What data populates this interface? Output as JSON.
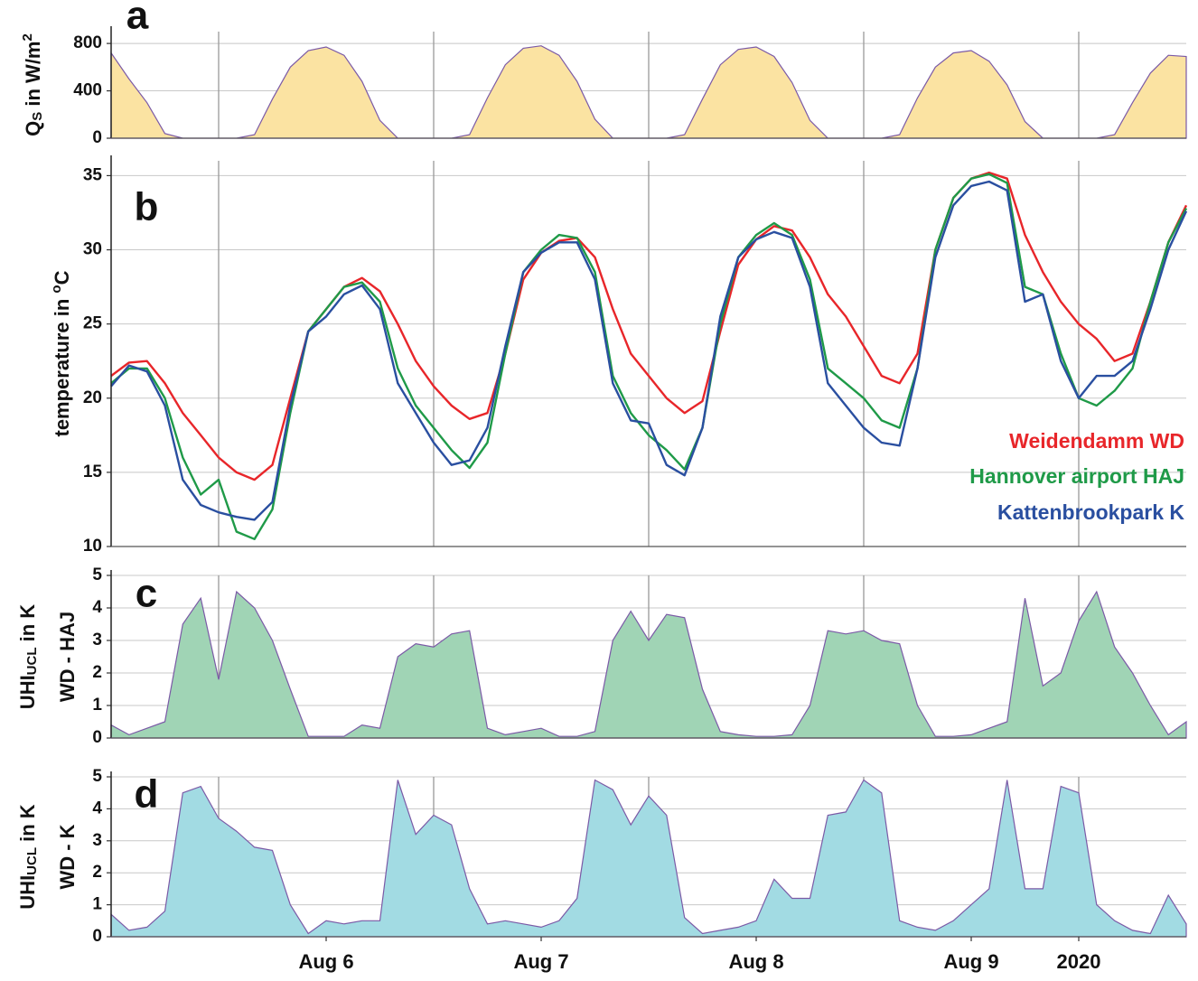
{
  "chart_data": [
    {
      "type": "area",
      "panel_label": "a",
      "ylabel": [
        [
          {
            "text": "Q"
          },
          {
            "text": "S",
            "sub": true
          },
          {
            "text": " in W/m"
          },
          {
            "text": "2",
            "sup": true
          }
        ]
      ],
      "x": [
        12,
        14,
        16,
        18,
        20,
        22,
        24,
        26,
        28,
        30,
        32,
        34,
        36,
        38,
        40,
        42,
        44,
        46,
        48,
        50,
        52,
        54,
        56,
        58,
        60,
        62,
        64,
        66,
        68,
        70,
        72,
        74,
        76,
        78,
        80,
        82,
        84,
        86,
        88,
        90,
        92,
        94,
        96,
        98,
        100,
        102,
        104,
        106,
        108,
        110,
        112,
        114,
        116,
        118,
        120,
        122,
        124,
        126,
        128,
        130,
        132
      ],
      "series": [
        {
          "color": "#7b5aa6",
          "fill": "#fbe3a2",
          "values": [
            720,
            500,
            300,
            40,
            0,
            0,
            0,
            0,
            30,
            330,
            600,
            740,
            770,
            700,
            480,
            150,
            0,
            0,
            0,
            0,
            30,
            340,
            620,
            760,
            780,
            700,
            480,
            160,
            0,
            0,
            0,
            0,
            30,
            330,
            620,
            750,
            770,
            690,
            470,
            150,
            0,
            0,
            0,
            0,
            30,
            340,
            600,
            720,
            740,
            650,
            450,
            140,
            0,
            0,
            0,
            0,
            30,
            300,
            550,
            700,
            690
          ]
        }
      ],
      "xlim": [
        12,
        132
      ],
      "xticks": [
        24,
        48,
        72,
        96,
        120
      ],
      "ylim": [
        0,
        900
      ],
      "yticks": [
        0,
        400,
        800
      ],
      "grid": true
    },
    {
      "type": "line",
      "panel_label": "b",
      "ylabel": [
        [
          {
            "text": "temperature in "
          },
          {
            "text": "o",
            "sup": true
          },
          {
            "text": "C"
          }
        ]
      ],
      "x": [
        12,
        14,
        16,
        18,
        20,
        22,
        24,
        26,
        28,
        30,
        32,
        34,
        36,
        38,
        40,
        42,
        44,
        46,
        48,
        50,
        52,
        54,
        56,
        58,
        60,
        62,
        64,
        66,
        68,
        70,
        72,
        74,
        76,
        78,
        80,
        82,
        84,
        86,
        88,
        90,
        92,
        94,
        96,
        98,
        100,
        102,
        104,
        106,
        108,
        110,
        112,
        114,
        116,
        118,
        120,
        122,
        124,
        126,
        128,
        130,
        132
      ],
      "series": [
        {
          "name": "Weidendamm WD",
          "color": "#e8262a",
          "values": [
            21.5,
            22.4,
            22.5,
            21.0,
            19.0,
            17.5,
            16.0,
            15.0,
            14.5,
            15.5,
            20.0,
            24.5,
            26.0,
            27.5,
            28.1,
            27.2,
            25.0,
            22.5,
            20.8,
            19.5,
            18.6,
            19.0,
            23.0,
            28.0,
            29.8,
            30.6,
            30.8,
            29.5,
            26.0,
            23.0,
            21.5,
            20.0,
            19.0,
            19.8,
            24.5,
            29.0,
            30.7,
            31.6,
            31.3,
            29.5,
            27.0,
            25.5,
            23.5,
            21.5,
            21.0,
            23.0,
            30.0,
            33.5,
            34.8,
            35.2,
            34.8,
            31.0,
            28.5,
            26.5,
            25.0,
            24.0,
            22.5,
            23.0,
            26.5,
            30.5,
            33.0
          ]
        },
        {
          "name": "Hannover airport HAJ",
          "color": "#1f9a48",
          "values": [
            21.0,
            22.0,
            22.0,
            20.0,
            16.0,
            13.5,
            14.5,
            11.0,
            10.5,
            12.5,
            19.0,
            24.5,
            26.0,
            27.5,
            27.8,
            26.5,
            22.0,
            19.5,
            18.0,
            16.5,
            15.3,
            17.0,
            23.0,
            28.5,
            30.0,
            31.0,
            30.8,
            28.5,
            21.5,
            19.0,
            17.5,
            16.5,
            15.2,
            18.0,
            25.0,
            29.5,
            31.0,
            31.8,
            31.0,
            28.0,
            22.0,
            21.0,
            20.0,
            18.5,
            18.0,
            22.0,
            30.0,
            33.5,
            34.8,
            35.1,
            34.5,
            27.5,
            27.0,
            23.0,
            20.0,
            19.5,
            20.5,
            22.0,
            26.5,
            30.5,
            32.8
          ]
        },
        {
          "name": "Kattenbrookpark K",
          "color": "#2a4fa0",
          "values": [
            20.8,
            22.2,
            21.8,
            19.5,
            14.5,
            12.8,
            12.3,
            12.0,
            11.8,
            13.0,
            19.5,
            24.5,
            25.5,
            27.0,
            27.6,
            26.0,
            21.0,
            19.0,
            17.0,
            15.5,
            15.8,
            18.0,
            23.5,
            28.5,
            29.8,
            30.5,
            30.5,
            28.0,
            21.0,
            18.5,
            18.3,
            15.5,
            14.8,
            18.0,
            25.5,
            29.5,
            30.7,
            31.2,
            30.8,
            27.5,
            21.0,
            19.5,
            18.0,
            17.0,
            16.8,
            22.0,
            29.5,
            33.0,
            34.3,
            34.6,
            34.0,
            26.5,
            27.0,
            22.5,
            20.0,
            21.5,
            21.5,
            22.5,
            26.0,
            30.0,
            32.6
          ]
        }
      ],
      "legend": "lower right",
      "xlim": [
        12,
        132
      ],
      "xticks": [
        24,
        48,
        72,
        96,
        120
      ],
      "ylim": [
        10,
        36
      ],
      "yticks": [
        10,
        15,
        20,
        25,
        30,
        35
      ],
      "grid": true
    },
    {
      "type": "area",
      "panel_label": "c",
      "ylabel": [
        [
          {
            "text": "UHI"
          },
          {
            "text": "UCL",
            "sub": true
          },
          {
            "text": " in K"
          }
        ],
        [
          {
            "text": "WD - HAJ"
          }
        ]
      ],
      "x": [
        12,
        14,
        16,
        18,
        20,
        22,
        24,
        26,
        28,
        30,
        32,
        34,
        36,
        38,
        40,
        42,
        44,
        46,
        48,
        50,
        52,
        54,
        56,
        58,
        60,
        62,
        64,
        66,
        68,
        70,
        72,
        74,
        76,
        78,
        80,
        82,
        84,
        86,
        88,
        90,
        92,
        94,
        96,
        98,
        100,
        102,
        104,
        106,
        108,
        110,
        112,
        114,
        116,
        118,
        120,
        122,
        124,
        126,
        128,
        130,
        132
      ],
      "series": [
        {
          "color": "#7b5aa6",
          "fill": "#a0d4b5",
          "values": [
            0.4,
            0.1,
            0.3,
            0.5,
            3.5,
            4.3,
            1.8,
            4.5,
            4.0,
            3.0,
            1.5,
            0.05,
            0.05,
            0.05,
            0.4,
            0.3,
            2.5,
            2.9,
            2.8,
            3.2,
            3.3,
            0.3,
            0.1,
            0.2,
            0.3,
            0.05,
            0.05,
            0.2,
            3.0,
            3.9,
            3.0,
            3.8,
            3.7,
            1.5,
            0.2,
            0.1,
            0.05,
            0.05,
            0.1,
            1.0,
            3.3,
            3.2,
            3.3,
            3.0,
            2.9,
            1.0,
            0.05,
            0.05,
            0.1,
            0.3,
            0.5,
            4.3,
            1.6,
            2.0,
            3.6,
            4.5,
            2.8,
            2.0,
            1.0,
            0.1,
            0.5
          ]
        }
      ],
      "xlim": [
        12,
        132
      ],
      "xticks": [
        24,
        48,
        72,
        96,
        120
      ],
      "ylim": [
        0,
        5
      ],
      "yticks": [
        0,
        1,
        2,
        3,
        4,
        5
      ],
      "grid": true
    },
    {
      "type": "area",
      "panel_label": "d",
      "ylabel": [
        [
          {
            "text": "UHI"
          },
          {
            "text": "UCL",
            "sub": true
          },
          {
            "text": " in K"
          }
        ],
        [
          {
            "text": "WD - K"
          }
        ]
      ],
      "x": [
        12,
        14,
        16,
        18,
        20,
        22,
        24,
        26,
        28,
        30,
        32,
        34,
        36,
        38,
        40,
        42,
        44,
        46,
        48,
        50,
        52,
        54,
        56,
        58,
        60,
        62,
        64,
        66,
        68,
        70,
        72,
        74,
        76,
        78,
        80,
        82,
        84,
        86,
        88,
        90,
        92,
        94,
        96,
        98,
        100,
        102,
        104,
        106,
        108,
        110,
        112,
        114,
        116,
        118,
        120,
        122,
        124,
        126,
        128,
        130,
        132
      ],
      "series": [
        {
          "color": "#7b5aa6",
          "fill": "#a2dbe3",
          "values": [
            0.7,
            0.2,
            0.3,
            0.8,
            4.5,
            4.7,
            3.7,
            3.3,
            2.8,
            2.7,
            1.0,
            0.1,
            0.5,
            0.4,
            0.5,
            0.5,
            4.9,
            3.2,
            3.8,
            3.5,
            1.5,
            0.4,
            0.5,
            0.4,
            0.3,
            0.5,
            1.2,
            4.9,
            4.6,
            3.5,
            4.4,
            3.8,
            0.6,
            0.1,
            0.2,
            0.3,
            0.5,
            1.8,
            1.2,
            1.2,
            3.8,
            3.9,
            4.9,
            4.5,
            0.5,
            0.3,
            0.2,
            0.5,
            1.0,
            1.5,
            4.9,
            1.5,
            1.5,
            4.7,
            4.5,
            1.0,
            0.5,
            0.2,
            0.1,
            1.3,
            0.4
          ]
        }
      ],
      "xlim": [
        12,
        132
      ],
      "xticks": [
        24,
        48,
        72,
        96,
        120
      ],
      "xtick_labels": [
        {
          "value": 36,
          "label": "Aug 6"
        },
        {
          "value": 60,
          "label": "Aug 7"
        },
        {
          "value": 84,
          "label": "Aug 8"
        },
        {
          "value": 108,
          "label": "Aug 9"
        },
        {
          "value": 120,
          "label": "2020"
        }
      ],
      "ylim": [
        0,
        5
      ],
      "yticks": [
        0,
        1,
        2,
        3,
        4,
        5
      ],
      "grid": true
    }
  ]
}
